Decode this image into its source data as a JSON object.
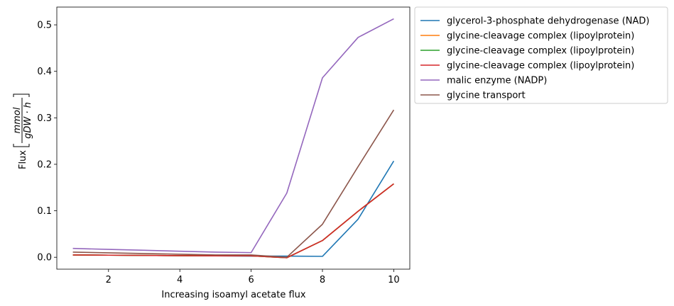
{
  "chart_data": {
    "type": "line",
    "title": "",
    "xlabel": "Increasing isoamyl acetate flux",
    "ylabel_prefix": "Flux",
    "ylabel_fraction": {
      "numerator": "mmol",
      "denominator": "gDW · h"
    },
    "xlim": [
      0.55,
      10.45
    ],
    "ylim": [
      -0.0256,
      0.5382
    ],
    "x_ticks": [
      2,
      4,
      6,
      8,
      10
    ],
    "y_ticks": [
      0.0,
      0.1,
      0.2,
      0.3,
      0.4,
      0.5
    ],
    "x_tick_labels": [
      "2",
      "4",
      "6",
      "8",
      "10"
    ],
    "y_tick_labels": [
      "0.0",
      "0.1",
      "0.2",
      "0.3",
      "0.4",
      "0.5"
    ],
    "grid": false,
    "legend_position": "outside-upper-right",
    "x": [
      1,
      2,
      3,
      4,
      5,
      6,
      7,
      8,
      9,
      10
    ],
    "series": [
      {
        "name": "glycerol-3-phosphate dehydrogenase (NAD)",
        "color": "#1f77b4",
        "values": [
          0.005,
          0.0045,
          0.004,
          0.0035,
          0.003,
          0.0025,
          0.0025,
          0.002,
          0.082,
          0.207
        ]
      },
      {
        "name": "glycine-cleavage complex (lipoylprotein)",
        "color": "#ff7f0e",
        "values": [
          0.005,
          0.0045,
          0.004,
          0.0035,
          0.003,
          0.003,
          -0.001,
          0.036,
          0.099,
          0.158
        ]
      },
      {
        "name": "glycine-cleavage complex (lipoylprotein)",
        "color": "#2ca02c",
        "values": [
          0.005,
          0.0045,
          0.004,
          0.0035,
          0.003,
          0.003,
          -0.001,
          0.036,
          0.099,
          0.158
        ]
      },
      {
        "name": "glycine-cleavage complex (lipoylprotein)",
        "color": "#d62728",
        "values": [
          0.005,
          0.0045,
          0.004,
          0.0035,
          0.003,
          0.003,
          -0.001,
          0.036,
          0.099,
          0.158
        ]
      },
      {
        "name": "malic enzyme (NADP)",
        "color": "#9467bd",
        "values": [
          0.019,
          0.017,
          0.015,
          0.013,
          0.011,
          0.01,
          0.138,
          0.386,
          0.473,
          0.513
        ]
      },
      {
        "name": "glycine transport",
        "color": "#8c564b",
        "values": [
          0.011,
          0.0095,
          0.008,
          0.0065,
          0.005,
          0.005,
          0.0,
          0.071,
          0.195,
          0.317
        ]
      }
    ]
  }
}
